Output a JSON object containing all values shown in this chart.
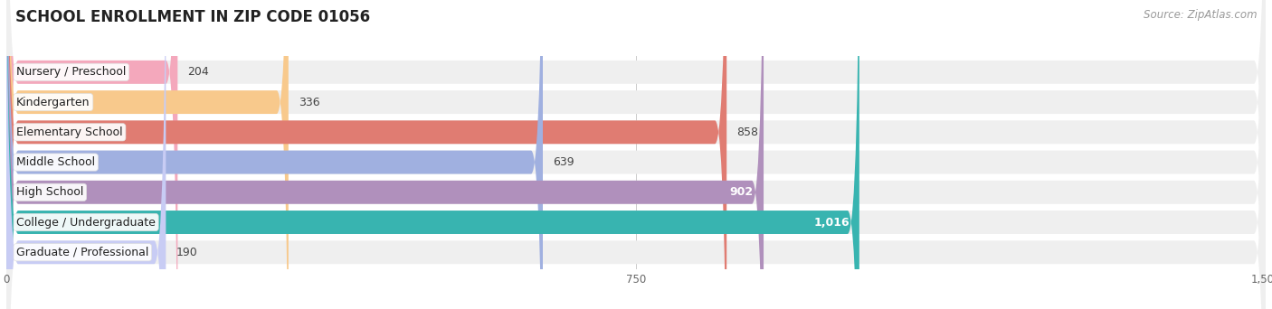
{
  "title": "SCHOOL ENROLLMENT IN ZIP CODE 01056",
  "source": "Source: ZipAtlas.com",
  "categories": [
    "Nursery / Preschool",
    "Kindergarten",
    "Elementary School",
    "Middle School",
    "High School",
    "College / Undergraduate",
    "Graduate / Professional"
  ],
  "values": [
    204,
    336,
    858,
    639,
    902,
    1016,
    190
  ],
  "bar_colors": [
    "#f4a8bc",
    "#f8c98c",
    "#e07c72",
    "#a0b0e0",
    "#b090bc",
    "#38b4b0",
    "#c8ccf4"
  ],
  "label_colors": [
    "#333333",
    "#333333",
    "#333333",
    "#333333",
    "#ffffff",
    "#ffffff",
    "#333333"
  ],
  "xlim": [
    0,
    1500
  ],
  "xticks": [
    0,
    750,
    1500
  ],
  "xtick_labels": [
    "0",
    "750",
    "1,500"
  ],
  "title_fontsize": 12,
  "source_fontsize": 8.5,
  "label_fontsize": 9,
  "value_fontsize": 9,
  "background_color": "#ffffff",
  "bar_bg_color": "#efefef"
}
